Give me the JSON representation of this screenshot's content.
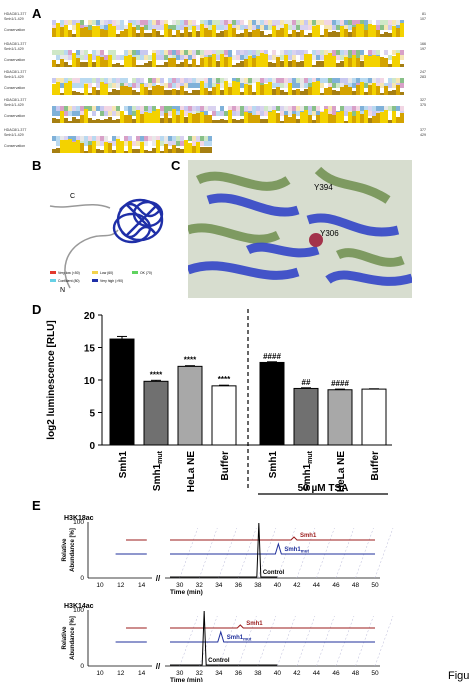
{
  "panels": {
    "a": "A",
    "b": "B",
    "c": "C",
    "d": "D",
    "e": "E"
  },
  "alignment": {
    "seq1_name": "HDAC8/1-377",
    "seq2_name": "Smh1/1-429",
    "conservation_label": "Conservation",
    "row_ends": [
      {
        "s1": "81",
        "s2": "107"
      },
      {
        "s1": "166",
        "s2": "197"
      },
      {
        "s1": "247",
        "s2": "283"
      },
      {
        "s1": "327",
        "s2": "375"
      },
      {
        "s1": "377",
        "s2": "429"
      }
    ]
  },
  "structure_b": {
    "label_c": "C",
    "label_n": "N",
    "legend": [
      "Very low (<50)",
      "Low (60)",
      "OK (70)",
      "Confident (80)",
      "Very high (>90)"
    ],
    "legend_colors": [
      "#e23a2e",
      "#f2d24b",
      "#5fd35f",
      "#67d1e6",
      "#1f2fa8"
    ]
  },
  "structure_c": {
    "labels": [
      "Y394",
      "Y306"
    ]
  },
  "chart_data": {
    "type": "bar",
    "ylabel": "log2 luminescence [RLU]",
    "ylim": [
      0,
      20
    ],
    "yticks": [
      "0",
      "5",
      "10",
      "15",
      "20"
    ],
    "categories": [
      "Smh1",
      "Smh1mut",
      "HeLa NE",
      "Buffer",
      "Smh1",
      "Smh1mut",
      "HeLa NE",
      "Buffer"
    ],
    "category_labels": [
      {
        "main": "Smh1",
        "sub": ""
      },
      {
        "main": "Smh1",
        "sub": "mut"
      },
      {
        "main": "HeLa NE",
        "sub": ""
      },
      {
        "main": "Buffer",
        "sub": ""
      },
      {
        "main": "Smh1",
        "sub": ""
      },
      {
        "main": "Smh1",
        "sub": "mut"
      },
      {
        "main": "HeLa NE",
        "sub": ""
      },
      {
        "main": "Buffer",
        "sub": ""
      }
    ],
    "values": [
      16.3,
      9.8,
      12.1,
      9.1,
      12.7,
      8.7,
      8.5,
      8.6
    ],
    "errors": [
      0.4,
      0.15,
      0.1,
      0.1,
      0.1,
      0.1,
      0.1,
      0.05
    ],
    "fills": [
      "#000000",
      "#707070",
      "#a8a8a8",
      "#ffffff",
      "#000000",
      "#707070",
      "#a8a8a8",
      "#ffffff"
    ],
    "annotations": [
      "",
      "****",
      "****",
      "****",
      "####",
      "##",
      "####",
      ""
    ],
    "group_label": "50 µM TSA"
  },
  "chromatograms": {
    "ylabel_line1": "Relative",
    "ylabel_line2": "Abundance [%]",
    "y_top": "100",
    "y_bottom": "0",
    "xlabel": "Time (min)",
    "xticks_left": [
      "10",
      "12",
      "14"
    ],
    "xticks_right": [
      "30",
      "32",
      "34",
      "36",
      "38",
      "40",
      "42",
      "44",
      "46",
      "48",
      "50"
    ],
    "top": {
      "title": "H3K18ac",
      "trace1": "Smh1",
      "trace2": "Smh1",
      "trace2_sub": "mut",
      "trace3": "Control"
    },
    "bottom": {
      "title": "H3K14ac",
      "trace1": "Smh1",
      "trace2": "Smh1",
      "trace2_sub": "mut",
      "trace3": "Control"
    }
  },
  "caption_fragment": "Figu"
}
